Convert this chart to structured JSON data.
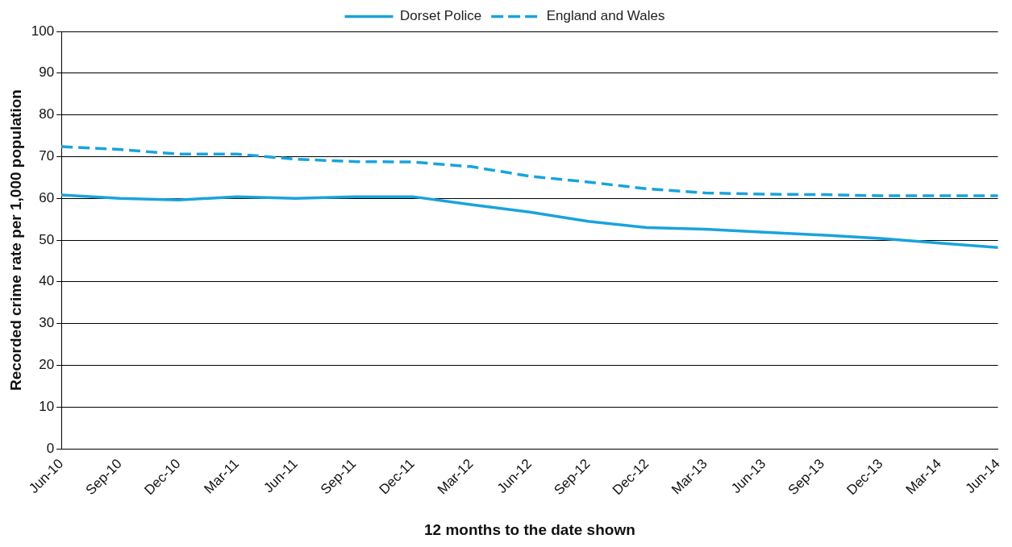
{
  "chart_data": {
    "type": "line",
    "xlabel": "12 months to the date shown",
    "ylabel": "Recorded crime rate per 1,000 population",
    "categories": [
      "Jun-10",
      "Sep-10",
      "Dec-10",
      "Mar-11",
      "Jun-11",
      "Sep-11",
      "Dec-11",
      "Mar-12",
      "Jun-12",
      "Sep-12",
      "Dec-12",
      "Mar-13",
      "Jun-13",
      "Sep-13",
      "Dec-13",
      "Mar-14",
      "Jun-14"
    ],
    "series": [
      {
        "name": "Dorset Police",
        "color": "#1aa3dc",
        "line_style": "solid",
        "values": [
          60.8,
          60.0,
          59.6,
          60.4,
          60.0,
          60.4,
          60.4,
          58.5,
          56.7,
          54.5,
          53.0,
          52.6,
          51.9,
          51.2,
          50.4,
          49.3,
          48.2
        ]
      },
      {
        "name": "England and Wales",
        "color": "#1aa3dc",
        "line_style": "dashed",
        "values": [
          72.4,
          71.7,
          70.6,
          70.6,
          69.4,
          68.8,
          68.7,
          67.6,
          65.3,
          63.9,
          62.3,
          61.3,
          61.0,
          60.9,
          60.6,
          60.6,
          60.6
        ]
      }
    ],
    "ylim": [
      0,
      100
    ],
    "yticks": [
      0,
      10,
      20,
      30,
      40,
      50,
      60,
      70,
      80,
      90,
      100
    ],
    "grid": "y",
    "legend": "top",
    "marker": "none"
  }
}
